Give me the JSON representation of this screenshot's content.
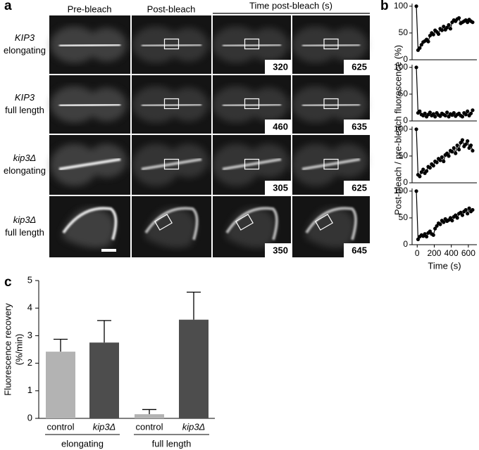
{
  "panel_labels": [
    "a",
    "b",
    "c"
  ],
  "panel_a": {
    "columns": [
      "Pre-bleach",
      "Post-bleach"
    ],
    "time_header": "Time post-bleach (s)",
    "rows": [
      {
        "gene": "KIP3",
        "condition": "elongating"
      },
      {
        "gene": "KIP3",
        "condition": "full length"
      },
      {
        "gene": "kip3Δ",
        "condition": "elongating"
      },
      {
        "gene": "kip3Δ",
        "condition": "full length"
      }
    ],
    "timestamps": [
      [
        320,
        625
      ],
      [
        460,
        635
      ],
      [
        305,
        625
      ],
      [
        350,
        645
      ]
    ]
  },
  "panel_b": {
    "ylabel": "Post-bleach / pre-bleach fluorescence (%)"
  },
  "chart_data": [
    {
      "type": "line",
      "color": "#000000",
      "xlim": [
        -60,
        700
      ],
      "ylim": [
        0,
        105
      ],
      "yticks": [
        0,
        50,
        100
      ],
      "x": [
        -10,
        10,
        30,
        50,
        70,
        90,
        110,
        130,
        150,
        170,
        190,
        210,
        230,
        250,
        270,
        290,
        310,
        330,
        350,
        370,
        390,
        410,
        430,
        450,
        470,
        490,
        510,
        530,
        550,
        570,
        590,
        610,
        630,
        650
      ],
      "values": [
        100,
        18,
        22,
        28,
        33,
        35,
        38,
        34,
        45,
        50,
        47,
        55,
        52,
        48,
        58,
        55,
        62,
        56,
        60,
        65,
        58,
        70,
        74,
        72,
        76,
        78,
        68,
        70,
        72,
        74,
        70,
        75,
        72,
        70
      ]
    },
    {
      "type": "line",
      "color": "#000000",
      "xlim": [
        -60,
        700
      ],
      "ylim": [
        0,
        105
      ],
      "yticks": [
        0,
        50,
        100
      ],
      "x": [
        -10,
        10,
        30,
        50,
        70,
        90,
        110,
        130,
        150,
        170,
        190,
        210,
        230,
        250,
        270,
        290,
        310,
        330,
        350,
        370,
        390,
        410,
        430,
        450,
        470,
        490,
        510,
        530,
        550,
        570,
        590,
        610,
        630,
        650
      ],
      "values": [
        100,
        15,
        18,
        12,
        10,
        14,
        8,
        12,
        16,
        10,
        13,
        8,
        15,
        11,
        9,
        14,
        12,
        10,
        16,
        8,
        13,
        11,
        15,
        9,
        12,
        14,
        10,
        8,
        15,
        12,
        18,
        10,
        14,
        20
      ]
    },
    {
      "type": "line",
      "color": "#000000",
      "xlim": [
        -60,
        700
      ],
      "ylim": [
        0,
        105
      ],
      "yticks": [
        0,
        50,
        100
      ],
      "x": [
        -10,
        10,
        30,
        50,
        70,
        90,
        110,
        130,
        150,
        170,
        190,
        210,
        230,
        250,
        270,
        290,
        310,
        330,
        350,
        370,
        390,
        410,
        430,
        450,
        470,
        490,
        510,
        530,
        550,
        570,
        590,
        610,
        630,
        650
      ],
      "values": [
        100,
        15,
        12,
        20,
        25,
        18,
        22,
        30,
        28,
        35,
        32,
        40,
        38,
        45,
        42,
        48,
        40,
        52,
        55,
        50,
        60,
        58,
        65,
        55,
        70,
        62,
        75,
        80,
        68,
        72,
        78,
        65,
        70,
        60
      ]
    },
    {
      "type": "line",
      "color": "#000000",
      "xlim": [
        -60,
        700
      ],
      "ylim": [
        0,
        105
      ],
      "yticks": [
        0,
        50,
        100
      ],
      "xticks": [
        0,
        200,
        400,
        600
      ],
      "xlabel": "Time (s)",
      "x": [
        -10,
        10,
        30,
        50,
        70,
        90,
        110,
        130,
        150,
        170,
        190,
        210,
        230,
        250,
        270,
        290,
        310,
        330,
        350,
        370,
        390,
        410,
        430,
        450,
        470,
        490,
        510,
        530,
        550,
        570,
        590,
        610,
        630,
        650
      ],
      "values": [
        100,
        10,
        15,
        18,
        16,
        20,
        15,
        22,
        25,
        20,
        18,
        30,
        35,
        40,
        38,
        45,
        42,
        48,
        44,
        46,
        50,
        45,
        52,
        55,
        50,
        58,
        60,
        55,
        62,
        65,
        58,
        68,
        62,
        65
      ]
    },
    {
      "type": "bar",
      "ylabel": [
        "Fluorescence recovery",
        "(%/min)"
      ],
      "categories": [
        "control",
        "kip3Δ",
        "control",
        "kip3Δ"
      ],
      "italic_categories": [
        false,
        true,
        false,
        true
      ],
      "groups": [
        "elongating",
        "full length"
      ],
      "values": [
        2.42,
        2.75,
        0.15,
        3.58
      ],
      "errors": [
        0.45,
        0.8,
        0.17,
        1.0
      ],
      "colors": [
        "#b3b3b3",
        "#4d4d4d",
        "#b3b3b3",
        "#4d4d4d"
      ],
      "ylim": [
        0,
        5
      ],
      "yticks": [
        0,
        1,
        2,
        3,
        4,
        5
      ]
    }
  ]
}
